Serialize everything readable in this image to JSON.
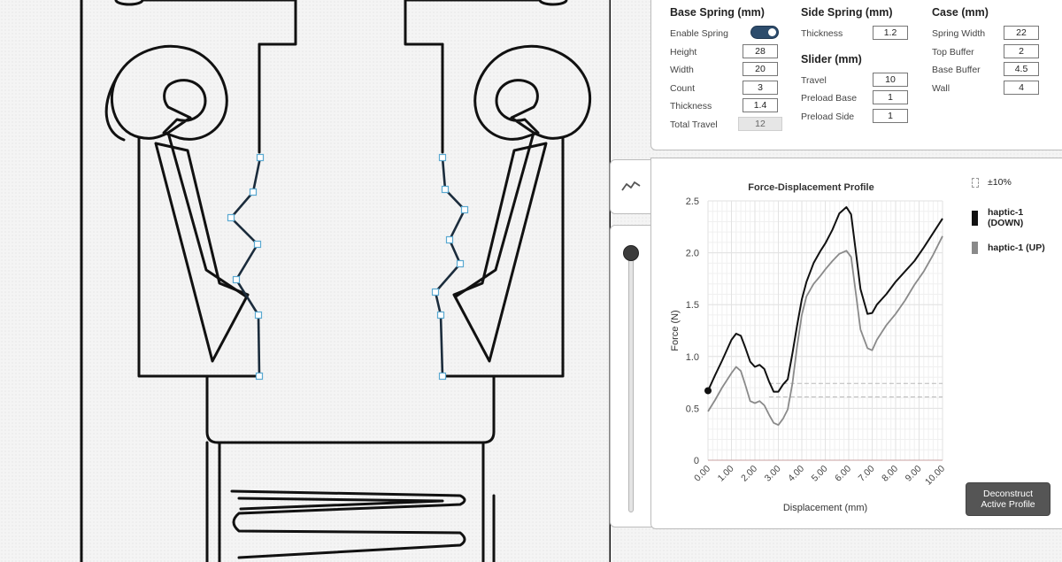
{
  "settings": {
    "base_spring": {
      "title": "Base Spring (mm)",
      "enable_label": "Enable Spring",
      "enabled": true,
      "fields": [
        {
          "label": "Height",
          "value": "28"
        },
        {
          "label": "Width",
          "value": "20"
        },
        {
          "label": "Count",
          "value": "3"
        },
        {
          "label": "Thickness",
          "value": "1.4"
        },
        {
          "label": "Total Travel",
          "value": "12"
        }
      ]
    },
    "side_spring": {
      "title": "Side Spring (mm)",
      "fields": [
        {
          "label": "Thickness",
          "value": "1.2"
        }
      ]
    },
    "slider": {
      "title": "Slider (mm)",
      "fields": [
        {
          "label": "Travel",
          "value": "10"
        },
        {
          "label": "Preload Base",
          "value": "1"
        },
        {
          "label": "Preload Side",
          "value": "1"
        }
      ]
    },
    "case": {
      "title": "Case (mm)",
      "fields": [
        {
          "label": "Spring Width",
          "value": "22"
        },
        {
          "label": "Top Buffer",
          "value": "2"
        },
        {
          "label": "Base Buffer",
          "value": "4.5"
        },
        {
          "label": "Wall",
          "value": "4"
        }
      ]
    }
  },
  "icons": {
    "profile_tab": "line-chart-icon"
  },
  "slider_position": 0.0,
  "legend": {
    "tolerance": "±10%",
    "down": "haptic-1\n(DOWN)",
    "up": "haptic-1 (UP)"
  },
  "deconstruct_label": "Deconstruct\nActive Profile",
  "colors": {
    "accent": "#2d4c6c",
    "down_series": "#111111",
    "up_series": "#8a8a8a",
    "control_point": "#9ccfe8"
  },
  "chart_data": {
    "type": "line",
    "title": "Force-Displacement Profile",
    "xlabel": "Displacement (mm)",
    "ylabel": "Force (N)",
    "xlim": [
      0,
      10
    ],
    "ylim": [
      0,
      2.5
    ],
    "x_ticks": [
      "0.00",
      "1.00",
      "2.00",
      "3.00",
      "4.00",
      "5.00",
      "6.00",
      "7.00",
      "8.00",
      "9.00",
      "10.00"
    ],
    "y_ticks": [
      "0",
      "0.5",
      "1.0",
      "1.5",
      "2.0",
      "2.5"
    ],
    "grid": true,
    "threshold_lines": [
      0.74,
      0.61
    ],
    "start_marker": [
      0,
      0.67
    ],
    "series": [
      {
        "name": "haptic-1 (DOWN)",
        "x": [
          0,
          0.3,
          0.6,
          1.0,
          1.2,
          1.4,
          1.6,
          1.8,
          2.0,
          2.2,
          2.4,
          2.6,
          2.8,
          3.0,
          3.2,
          3.4,
          3.6,
          3.8,
          4.0,
          4.2,
          4.5,
          4.8,
          5.0,
          5.3,
          5.6,
          5.9,
          6.1,
          6.3,
          6.5,
          6.8,
          7.0,
          7.2,
          7.6,
          8.0,
          8.4,
          8.8,
          9.2,
          9.6,
          10.0
        ],
        "y": [
          0.67,
          0.82,
          0.96,
          1.16,
          1.22,
          1.2,
          1.08,
          0.95,
          0.9,
          0.92,
          0.88,
          0.76,
          0.66,
          0.66,
          0.73,
          0.78,
          1.03,
          1.3,
          1.55,
          1.72,
          1.9,
          2.02,
          2.09,
          2.22,
          2.38,
          2.44,
          2.37,
          2.02,
          1.65,
          1.41,
          1.42,
          1.5,
          1.6,
          1.72,
          1.82,
          1.92,
          2.05,
          2.19,
          2.33
        ]
      },
      {
        "name": "haptic-1 (UP)",
        "x": [
          0,
          0.3,
          0.6,
          1.0,
          1.2,
          1.4,
          1.6,
          1.8,
          2.0,
          2.2,
          2.4,
          2.6,
          2.8,
          3.0,
          3.2,
          3.4,
          3.6,
          3.8,
          4.0,
          4.2,
          4.5,
          4.8,
          5.0,
          5.3,
          5.6,
          5.9,
          6.1,
          6.3,
          6.5,
          6.8,
          7.0,
          7.2,
          7.6,
          8.0,
          8.4,
          8.8,
          9.2,
          9.6,
          10.0
        ],
        "y": [
          0.47,
          0.58,
          0.7,
          0.84,
          0.9,
          0.86,
          0.72,
          0.57,
          0.55,
          0.57,
          0.53,
          0.44,
          0.36,
          0.34,
          0.4,
          0.49,
          0.74,
          1.1,
          1.4,
          1.58,
          1.7,
          1.78,
          1.84,
          1.92,
          1.99,
          2.02,
          1.96,
          1.62,
          1.26,
          1.08,
          1.06,
          1.16,
          1.3,
          1.41,
          1.54,
          1.69,
          1.82,
          1.98,
          2.16
        ]
      }
    ]
  }
}
